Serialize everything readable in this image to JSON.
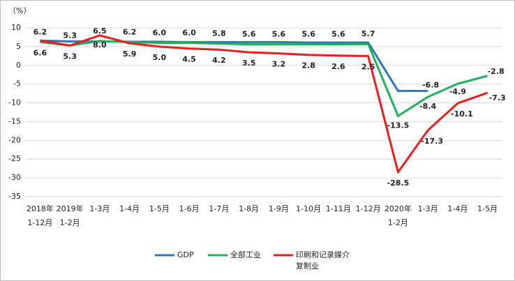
{
  "chart_data": {
    "type": "line",
    "y_label": "（%）",
    "categories": [
      "2018年\n1-12月",
      "2019年\n1-2月",
      "1-3月",
      "1-4月",
      "1-5月",
      "1-6月",
      "1-7月",
      "1-8月",
      "1-9月",
      "1-10月",
      "1-11月",
      "1-12月",
      "2020年\n1-2月",
      "1-3月",
      "1-4月",
      "1-5月"
    ],
    "series": [
      {
        "name": "GDP",
        "color": "#2e75b6",
        "values": [
          6.6,
          6.4,
          6.4,
          6.3,
          6.3,
          6.2,
          6.2,
          6.2,
          6.2,
          6.1,
          6.1,
          6.1,
          -6.8,
          -6.8,
          null,
          null
        ],
        "value_labels": [
          null,
          null,
          null,
          null,
          null,
          null,
          null,
          null,
          null,
          null,
          null,
          null,
          null,
          "-6.8",
          null,
          null
        ]
      },
      {
        "name": "全部工业",
        "color": "#21b15a",
        "values": [
          6.2,
          5.3,
          6.5,
          6.2,
          6.0,
          6.0,
          5.8,
          5.6,
          5.6,
          5.6,
          5.6,
          5.7,
          -13.5,
          -8.4,
          -4.9,
          -2.8
        ],
        "value_labels": [
          "6.2",
          "5.3",
          "6.5",
          "6.2",
          "6.0",
          "6.0",
          "5.8",
          "5.6",
          "5.6",
          "5.6",
          "5.6",
          "5.7",
          "-13.5",
          "-8.4",
          "-4.9",
          "-2.8"
        ]
      },
      {
        "name": "印刷和记录媒介复制业",
        "color": "#ee1c1c",
        "values": [
          6.6,
          5.3,
          8.0,
          5.9,
          5.0,
          4.5,
          4.2,
          3.5,
          3.2,
          2.8,
          2.6,
          2.5,
          -28.5,
          -17.3,
          -10.1,
          -7.3
        ],
        "value_labels": [
          "6.6",
          "5.3",
          "8.0",
          "5.9",
          "5.0",
          "4.5",
          "4.2",
          "3.5",
          "3.2",
          "2.8",
          "2.6",
          "2.5",
          "-28.5",
          "-17.3",
          "-10.1",
          "-7.3"
        ]
      }
    ],
    "ylim": [
      -35,
      10
    ],
    "yticks": [
      -35,
      -30,
      -25,
      -20,
      -15,
      -10,
      -5,
      0,
      5,
      10
    ],
    "grid": true,
    "legend": "bottom"
  }
}
